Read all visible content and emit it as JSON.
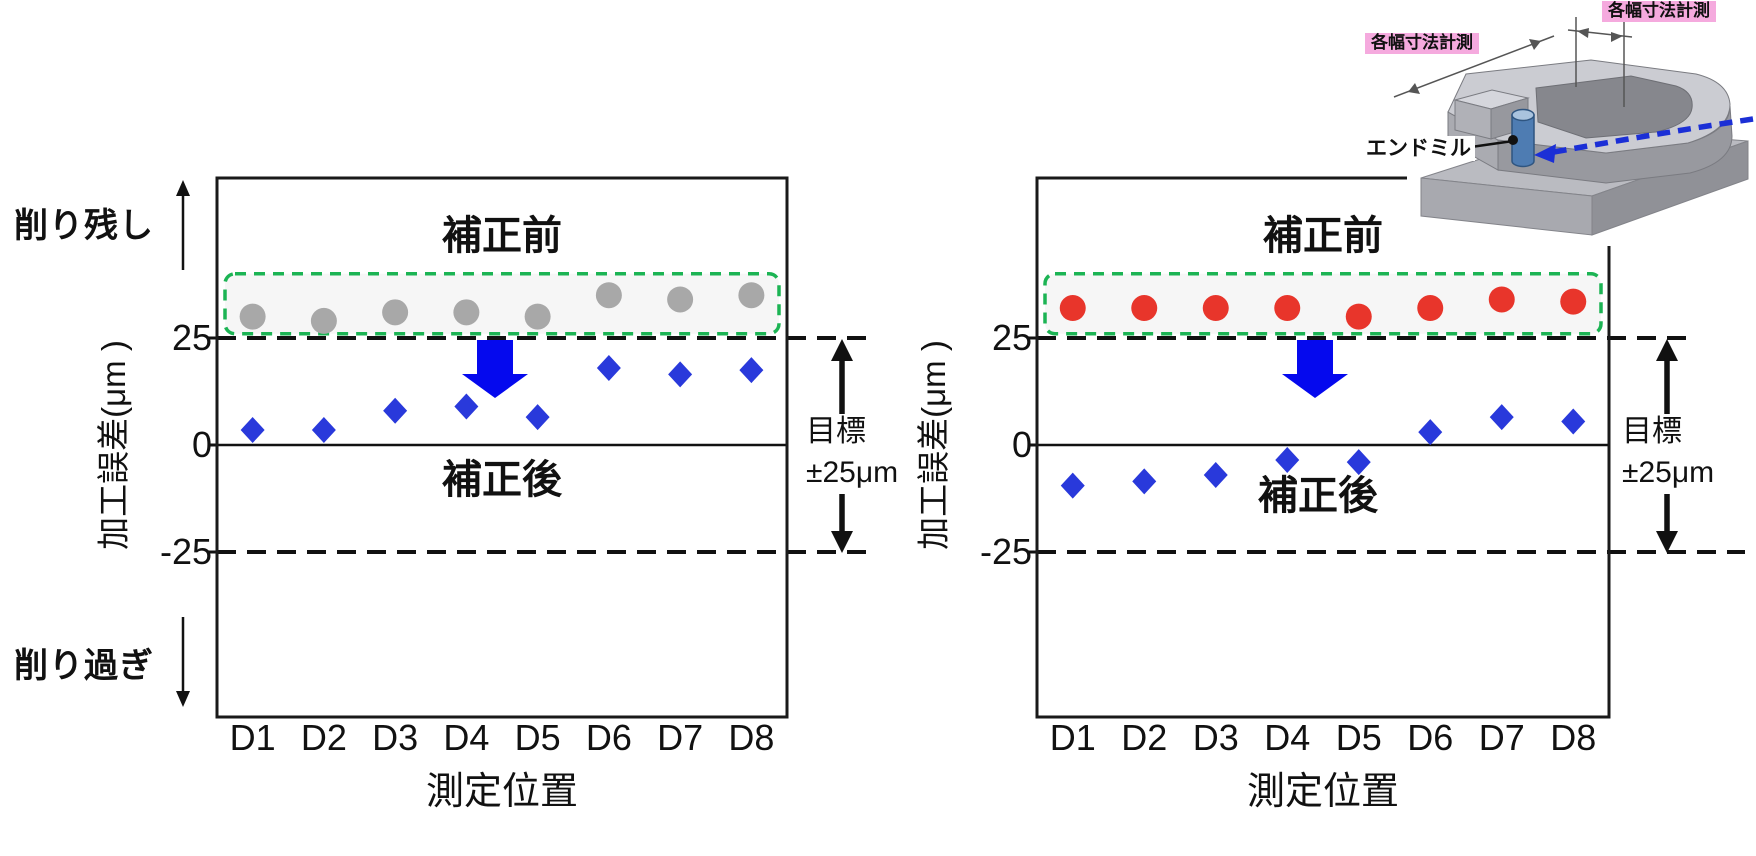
{
  "figure": {
    "background": "#ffffff",
    "uncut_label": "削り残し",
    "overcut_label": "削り過ぎ"
  },
  "illustration": {
    "dim_label_top": "各幅寸法計測",
    "dim_label_left": "各幅寸法計測",
    "endmill_label": "エンドミル",
    "label_bg": "#f5aade",
    "toolpath_color": "#1b2fd6"
  },
  "colors": {
    "frame": "#1a1a1a",
    "dashed_limit_line": "#111111",
    "block_arrow": "#0509ee",
    "highlight_stroke": "#1cb454",
    "highlight_fill": "#f0f0f0",
    "target_arrow": "#111111"
  },
  "chart_data": [
    {
      "type": "scatter",
      "title_before": "補正前",
      "title_after": "補正後",
      "categories": [
        "D1",
        "D2",
        "D3",
        "D4",
        "D5",
        "D6",
        "D7",
        "D8"
      ],
      "series": [
        {
          "name": "補正前",
          "marker": "circle",
          "color": "#a8a8a8",
          "values": [
            30,
            29,
            31,
            31,
            30,
            35,
            34,
            35
          ]
        },
        {
          "name": "補正後",
          "marker": "diamond",
          "color": "#2939db",
          "values": [
            3.5,
            3.5,
            8,
            9,
            6.5,
            18,
            16.5,
            17.5
          ]
        }
      ],
      "xlabel": "測定位置",
      "ylabel": "加工誤差(μm )",
      "yticks": [
        25,
        0,
        -25
      ],
      "ylim": [
        -63.5,
        62.4
      ],
      "grid": false,
      "highlight_range": [
        26,
        40
      ],
      "target_label": [
        "目標",
        "±25μm"
      ]
    },
    {
      "type": "scatter",
      "title_before": "補正前",
      "title_after": "補正後",
      "categories": [
        "D1",
        "D2",
        "D3",
        "D4",
        "D5",
        "D6",
        "D7",
        "D8"
      ],
      "series": [
        {
          "name": "補正前",
          "marker": "circle",
          "color": "#e8352b",
          "values": [
            32,
            32,
            32,
            32,
            30,
            32,
            34,
            33.5
          ]
        },
        {
          "name": "補正後",
          "marker": "diamond",
          "color": "#2939db",
          "values": [
            -9.5,
            -8.5,
            -7,
            -3.5,
            -4,
            3,
            6.5,
            5.5
          ]
        }
      ],
      "xlabel": "測定位置",
      "ylabel": "加工誤差(μm )",
      "yticks": [
        25,
        0,
        -25
      ],
      "ylim": [
        -63.5,
        62.4
      ],
      "grid": false,
      "highlight_range": [
        26,
        40
      ],
      "target_label": [
        "目標",
        "±25μm"
      ]
    }
  ]
}
